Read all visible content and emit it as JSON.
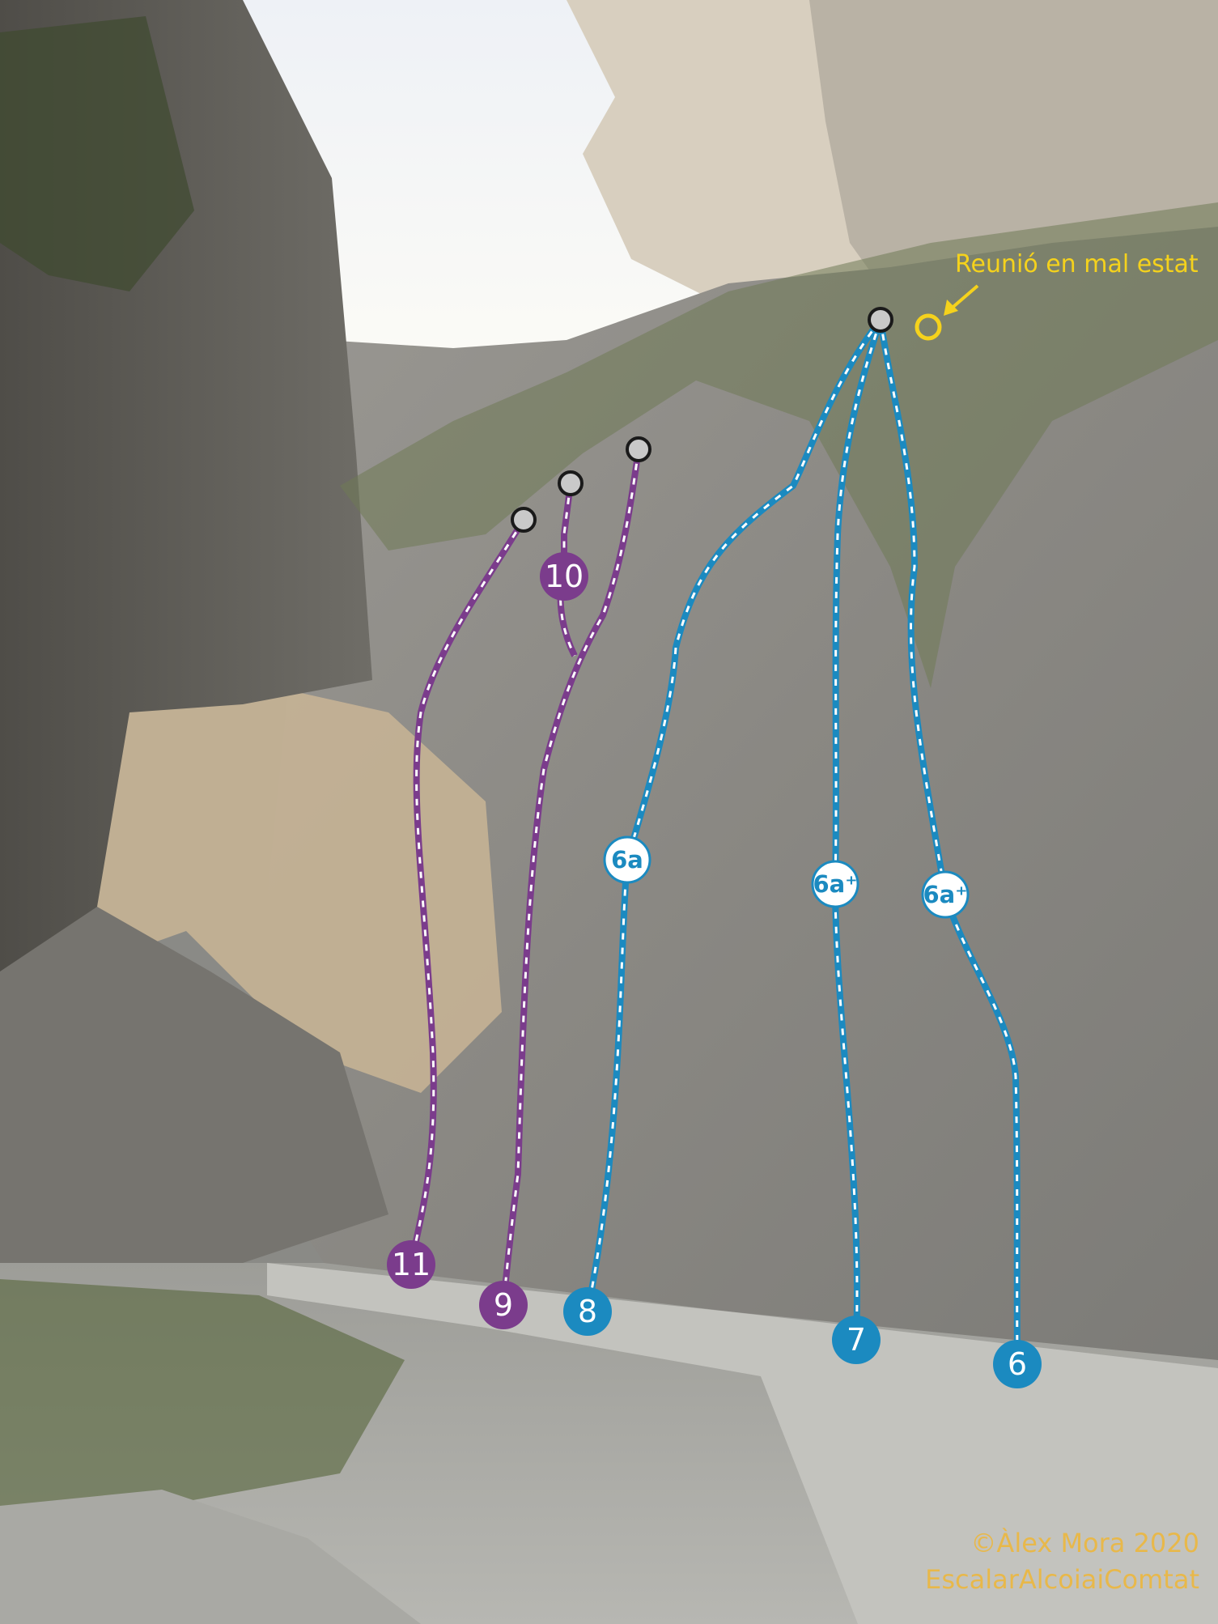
{
  "note": {
    "text": "Reunió en mal estat",
    "color": "#f5d21c"
  },
  "credits": {
    "line1": "©Àlex Mora 2020",
    "line2": "EscalarAlcoiaiComtat",
    "color": "#e8b84a"
  },
  "colors": {
    "purple_route": "#7b3c8c",
    "blue_route": "#1b8ac0",
    "anchor_fill": "#c9c9c9",
    "anchor_stroke": "#1a1a1a"
  },
  "routes": [
    {
      "number": "11",
      "color": "#7b3c8c"
    },
    {
      "number": "10",
      "color": "#7b3c8c"
    },
    {
      "number": "9",
      "color": "#7b3c8c"
    },
    {
      "number": "8",
      "color": "#1b8ac0",
      "grade": "6a"
    },
    {
      "number": "7",
      "color": "#1b8ac0",
      "grade": "6a⁺"
    },
    {
      "number": "6",
      "color": "#1b8ac0",
      "grade": "6a⁺"
    }
  ]
}
